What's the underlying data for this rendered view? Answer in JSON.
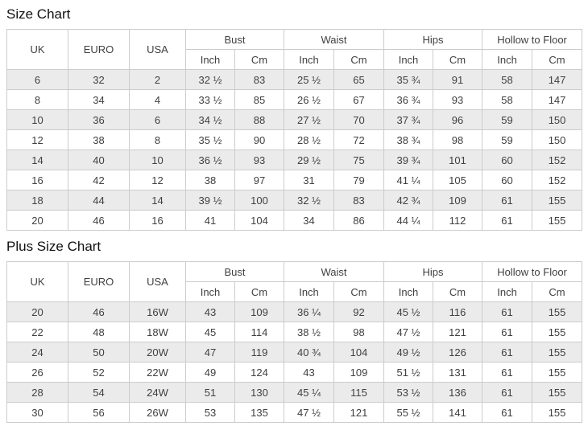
{
  "colors": {
    "stripe": "#ebebeb",
    "border": "#cccccc",
    "text": "#404040",
    "title": "#111111"
  },
  "size_chart": {
    "title": "Size Chart",
    "headers": {
      "uk": "UK",
      "euro": "EURO",
      "usa": "USA"
    },
    "groups": [
      {
        "label": "Bust",
        "sub": [
          "Inch",
          "Cm"
        ]
      },
      {
        "label": "Waist",
        "sub": [
          "Inch",
          "Cm"
        ]
      },
      {
        "label": "Hips",
        "sub": [
          "Inch",
          "Cm"
        ]
      },
      {
        "label": "Hollow to Floor",
        "sub": [
          "Inch",
          "Cm"
        ]
      }
    ],
    "rows": [
      [
        "6",
        "32",
        "2",
        "32 ½",
        "83",
        "25 ½",
        "65",
        "35 ¾",
        "91",
        "58",
        "147"
      ],
      [
        "8",
        "34",
        "4",
        "33 ½",
        "85",
        "26 ½",
        "67",
        "36 ¾",
        "93",
        "58",
        "147"
      ],
      [
        "10",
        "36",
        "6",
        "34 ½",
        "88",
        "27 ½",
        "70",
        "37 ¾",
        "96",
        "59",
        "150"
      ],
      [
        "12",
        "38",
        "8",
        "35 ½",
        "90",
        "28 ½",
        "72",
        "38 ¾",
        "98",
        "59",
        "150"
      ],
      [
        "14",
        "40",
        "10",
        "36 ½",
        "93",
        "29 ½",
        "75",
        "39 ¾",
        "101",
        "60",
        "152"
      ],
      [
        "16",
        "42",
        "12",
        "38",
        "97",
        "31",
        "79",
        "41 ¼",
        "105",
        "60",
        "152"
      ],
      [
        "18",
        "44",
        "14",
        "39 ½",
        "100",
        "32 ½",
        "83",
        "42 ¾",
        "109",
        "61",
        "155"
      ],
      [
        "20",
        "46",
        "16",
        "41",
        "104",
        "34",
        "86",
        "44 ¼",
        "112",
        "61",
        "155"
      ]
    ]
  },
  "plus_size_chart": {
    "title": "Plus Size Chart",
    "headers": {
      "uk": "UK",
      "euro": "EURO",
      "usa": "USA"
    },
    "groups": [
      {
        "label": "Bust",
        "sub": [
          "Inch",
          "Cm"
        ]
      },
      {
        "label": "Waist",
        "sub": [
          "Inch",
          "Cm"
        ]
      },
      {
        "label": "Hips",
        "sub": [
          "Inch",
          "Cm"
        ]
      },
      {
        "label": "Hollow to Floor",
        "sub": [
          "Inch",
          "Cm"
        ]
      }
    ],
    "rows": [
      [
        "20",
        "46",
        "16W",
        "43",
        "109",
        "36 ¼",
        "92",
        "45 ½",
        "116",
        "61",
        "155"
      ],
      [
        "22",
        "48",
        "18W",
        "45",
        "114",
        "38 ½",
        "98",
        "47 ½",
        "121",
        "61",
        "155"
      ],
      [
        "24",
        "50",
        "20W",
        "47",
        "119",
        "40 ¾",
        "104",
        "49 ½",
        "126",
        "61",
        "155"
      ],
      [
        "26",
        "52",
        "22W",
        "49",
        "124",
        "43",
        "109",
        "51 ½",
        "131",
        "61",
        "155"
      ],
      [
        "28",
        "54",
        "24W",
        "51",
        "130",
        "45 ¼",
        "115",
        "53 ½",
        "136",
        "61",
        "155"
      ],
      [
        "30",
        "56",
        "26W",
        "53",
        "135",
        "47 ½",
        "121",
        "55 ½",
        "141",
        "61",
        "155"
      ]
    ]
  }
}
